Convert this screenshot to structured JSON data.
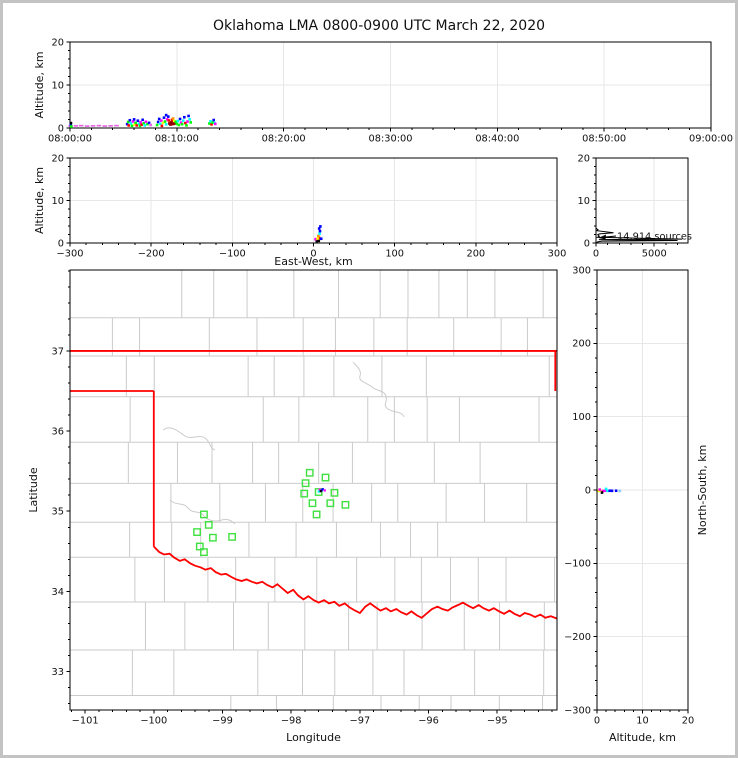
{
  "title": "Oklahoma LMA 0800-0900 UTC March 22, 2020",
  "colors": {
    "state_border": "#ff0000",
    "county_line": "#cbcbcb",
    "station": "#3fe03f",
    "histogram_line": "#000000",
    "grid_line": "#e7e7e7"
  },
  "chart_data": {
    "time_height": {
      "type": "scatter",
      "ylabel": "Altitude, km",
      "xlim_minutes": [
        0,
        60
      ],
      "ylim": [
        0,
        20
      ],
      "x_ticks_minutes": [
        0,
        10,
        20,
        30,
        40,
        50,
        60
      ],
      "x_tick_labels": [
        "08:00:00",
        "08:10:00",
        "08:20:00",
        "08:30:00",
        "08:40:00",
        "08:50:00",
        "09:00:00"
      ],
      "y_ticks": [
        0,
        10,
        20
      ],
      "y_tick_labels": [
        "0",
        "10",
        "20"
      ],
      "trail_color": "#e65fe6",
      "trail": [
        [
          0.05,
          0.45
        ],
        [
          0.55,
          0.5
        ],
        [
          1.05,
          0.55
        ],
        [
          1.6,
          0.45
        ],
        [
          2.15,
          0.5
        ],
        [
          2.7,
          0.55
        ],
        [
          3.25,
          0.45
        ],
        [
          3.8,
          0.5
        ],
        [
          4.35,
          0.55
        ]
      ],
      "points": [
        [
          0.07,
          0.8,
          "#00f"
        ],
        [
          0.12,
          0.35,
          "#0f0"
        ],
        [
          0.09,
          1.15,
          "#000"
        ],
        [
          5.35,
          0.9,
          "#00f"
        ],
        [
          5.45,
          1.4,
          "#0f0"
        ],
        [
          5.5,
          0.6,
          "#f00"
        ],
        [
          5.6,
          1.8,
          "#00f"
        ],
        [
          5.7,
          1.1,
          "#0ff"
        ],
        [
          5.8,
          0.5,
          "#0f0"
        ],
        [
          5.9,
          1.5,
          "#f0f"
        ],
        [
          6.0,
          2.0,
          "#00f"
        ],
        [
          6.05,
          0.8,
          "#ff0"
        ],
        [
          6.15,
          1.2,
          "#0f0"
        ],
        [
          6.25,
          0.6,
          "#f00"
        ],
        [
          6.35,
          1.7,
          "#00f"
        ],
        [
          6.45,
          1.0,
          "#0ff"
        ],
        [
          6.55,
          0.5,
          "#0f0"
        ],
        [
          6.6,
          1.35,
          "#f0f"
        ],
        [
          6.7,
          0.75,
          "#f00"
        ],
        [
          6.8,
          1.9,
          "#00f"
        ],
        [
          6.9,
          1.1,
          "#0f0"
        ],
        [
          7.0,
          0.6,
          "#0ff"
        ],
        [
          7.1,
          1.45,
          "#f0f"
        ],
        [
          7.25,
          0.9,
          "#0f0"
        ],
        [
          7.4,
          1.2,
          "#00f"
        ],
        [
          7.55,
          0.7,
          "#e65fe6"
        ],
        [
          8.15,
          0.7,
          "#0f0"
        ],
        [
          8.25,
          1.4,
          "#00f"
        ],
        [
          8.35,
          2.1,
          "#00f"
        ],
        [
          8.45,
          1.0,
          "#0ff"
        ],
        [
          8.55,
          1.7,
          "#f0f"
        ],
        [
          8.6,
          0.5,
          "#f00"
        ],
        [
          8.7,
          1.2,
          "#ff0"
        ],
        [
          8.8,
          2.4,
          "#00f"
        ],
        [
          8.9,
          1.5,
          "#0f0"
        ],
        [
          9.0,
          3.0,
          "#00f"
        ],
        [
          9.0,
          0.85,
          "#0ff"
        ],
        [
          9.1,
          2.0,
          "#f0f"
        ],
        [
          9.2,
          2.65,
          "#00f"
        ],
        [
          9.25,
          1.75,
          "#f00"
        ],
        [
          9.3,
          1.05,
          "#8b0000"
        ],
        [
          9.4,
          0.8,
          "#8b0000"
        ],
        [
          9.45,
          1.3,
          "#990000"
        ],
        [
          9.5,
          1.1,
          "#8b0000"
        ],
        [
          9.55,
          0.9,
          "#a00000"
        ],
        [
          9.6,
          1.35,
          "#8b0000"
        ],
        [
          9.65,
          1.15,
          "#8b0000"
        ],
        [
          9.7,
          0.95,
          "#990000"
        ],
        [
          9.75,
          1.25,
          "#8b0000"
        ],
        [
          9.8,
          1.05,
          "#a00000"
        ],
        [
          9.55,
          1.9,
          "#f00"
        ],
        [
          9.65,
          2.2,
          "#ff8c00"
        ],
        [
          9.75,
          1.65,
          "#ff0"
        ],
        [
          9.9,
          1.45,
          "#0f0"
        ],
        [
          10.0,
          0.95,
          "#0f0"
        ],
        [
          10.1,
          1.6,
          "#0ff"
        ],
        [
          10.2,
          0.7,
          "#0f0"
        ],
        [
          10.3,
          2.1,
          "#00f"
        ],
        [
          10.4,
          1.25,
          "#f0f"
        ],
        [
          10.5,
          0.9,
          "#0f0"
        ],
        [
          10.6,
          1.7,
          "#0ff"
        ],
        [
          10.7,
          2.5,
          "#00f"
        ],
        [
          10.8,
          1.15,
          "#f00"
        ],
        [
          10.9,
          0.6,
          "#0f0"
        ],
        [
          11.0,
          1.5,
          "#f0f"
        ],
        [
          11.1,
          2.8,
          "#00f"
        ],
        [
          11.2,
          2.0,
          "#0ff"
        ],
        [
          11.3,
          1.3,
          "#0f0"
        ],
        [
          13.05,
          1.05,
          "#0f0"
        ],
        [
          13.15,
          1.55,
          "#0ff"
        ],
        [
          13.25,
          0.85,
          "#f00"
        ],
        [
          13.35,
          1.25,
          "#0f0"
        ],
        [
          13.45,
          1.85,
          "#00f"
        ],
        [
          13.55,
          1.15,
          "#0ff"
        ],
        [
          13.6,
          0.95,
          "#f0f"
        ]
      ]
    },
    "ew_height": {
      "type": "scatter",
      "xlabel": "East-West, km",
      "ylabel": "Altitude, km",
      "xlim": [
        -300,
        300
      ],
      "ylim": [
        0,
        20
      ],
      "x_ticks": [
        -300,
        -200,
        -100,
        0,
        100,
        200,
        300
      ],
      "x_tick_labels": [
        "−300",
        "−200",
        "−100",
        "0",
        "100",
        "200",
        "300"
      ],
      "y_ticks": [
        0,
        10,
        20
      ],
      "y_tick_labels": [
        "0",
        "10",
        "20"
      ],
      "points": [
        [
          4,
          0.45,
          "#000"
        ],
        [
          5.5,
          0.75,
          "#000"
        ],
        [
          6.5,
          0.5,
          "#000"
        ],
        [
          7,
          1.2,
          "#f00"
        ],
        [
          6,
          1.65,
          "#ff8c00"
        ],
        [
          7.5,
          2.2,
          "#0ff"
        ],
        [
          8,
          2.8,
          "#00f"
        ],
        [
          7,
          3.4,
          "#00f"
        ],
        [
          8.5,
          3.9,
          "#00f"
        ],
        [
          2.5,
          0.9,
          "#f0f"
        ],
        [
          9.5,
          1.0,
          "#00f"
        ],
        [
          5,
          1.05,
          "#ff0"
        ]
      ]
    },
    "histogram": {
      "type": "line",
      "annotation": "14,914 sources",
      "xlim": [
        0,
        7900
      ],
      "ylim": [
        0,
        20
      ],
      "x_ticks": [
        0,
        5000
      ],
      "x_tick_labels": [
        "0",
        "5000"
      ],
      "y_ticks": [
        0,
        10,
        20
      ],
      "y_tick_labels": [
        "0",
        "10",
        "20"
      ],
      "profile": [
        [
          0,
          20
        ],
        [
          0,
          3.5
        ],
        [
          180,
          3.1
        ],
        [
          80,
          2.9
        ],
        [
          1500,
          2.4
        ],
        [
          300,
          2.15
        ],
        [
          150,
          1.95
        ],
        [
          280,
          1.6
        ],
        [
          120,
          1.35
        ],
        [
          7400,
          0.92
        ],
        [
          250,
          0.8
        ],
        [
          7000,
          0.6
        ],
        [
          500,
          0.45
        ],
        [
          150,
          0.25
        ],
        [
          40,
          0.05
        ],
        [
          0,
          0
        ]
      ]
    },
    "map": {
      "type": "scatter",
      "xlabel": "Longitude",
      "ylabel": "Latitude",
      "xlim": [
        -101.22,
        -94.13
      ],
      "ylim": [
        32.52,
        38.01
      ],
      "x_ticks": [
        -101,
        -100,
        -99,
        -98,
        -97,
        -96,
        -95
      ],
      "x_tick_labels": [
        "−101",
        "−100",
        "−99",
        "−98",
        "−97",
        "−96",
        "−95"
      ],
      "y_ticks": [
        33,
        34,
        35,
        36,
        37
      ],
      "y_tick_labels": [
        "33",
        "34",
        "35",
        "36",
        "37"
      ],
      "state_border": {
        "north_lat": 37,
        "panhandle_lat": 36.5,
        "west_lon": -100,
        "west_lat_range": [
          34.56,
          36.5
        ],
        "east_lon": -94.155,
        "east_lat_range": [
          36.5,
          37
        ],
        "red_river": [
          [
            -100.0,
            34.56
          ],
          [
            -99.92,
            34.49
          ],
          [
            -99.85,
            34.46
          ],
          [
            -99.77,
            34.47
          ],
          [
            -99.7,
            34.42
          ],
          [
            -99.62,
            34.38
          ],
          [
            -99.55,
            34.4
          ],
          [
            -99.47,
            34.35
          ],
          [
            -99.4,
            34.32
          ],
          [
            -99.32,
            34.3
          ],
          [
            -99.25,
            34.27
          ],
          [
            -99.17,
            34.29
          ],
          [
            -99.1,
            34.24
          ],
          [
            -99.02,
            34.21
          ],
          [
            -98.95,
            34.22
          ],
          [
            -98.87,
            34.18
          ],
          [
            -98.8,
            34.15
          ],
          [
            -98.72,
            34.13
          ],
          [
            -98.65,
            34.15
          ],
          [
            -98.57,
            34.12
          ],
          [
            -98.5,
            34.1
          ],
          [
            -98.42,
            34.12
          ],
          [
            -98.35,
            34.08
          ],
          [
            -98.27,
            34.05
          ],
          [
            -98.2,
            34.09
          ],
          [
            -98.12,
            34.03
          ],
          [
            -98.05,
            33.98
          ],
          [
            -97.97,
            34.02
          ],
          [
            -97.9,
            33.95
          ],
          [
            -97.82,
            33.9
          ],
          [
            -97.75,
            33.94
          ],
          [
            -97.67,
            33.89
          ],
          [
            -97.6,
            33.86
          ],
          [
            -97.52,
            33.89
          ],
          [
            -97.45,
            33.85
          ],
          [
            -97.37,
            33.87
          ],
          [
            -97.3,
            33.82
          ],
          [
            -97.22,
            33.85
          ],
          [
            -97.15,
            33.8
          ],
          [
            -97.07,
            33.76
          ],
          [
            -97.0,
            33.73
          ],
          [
            -96.92,
            33.81
          ],
          [
            -96.85,
            33.85
          ],
          [
            -96.77,
            33.8
          ],
          [
            -96.7,
            33.76
          ],
          [
            -96.62,
            33.79
          ],
          [
            -96.55,
            33.75
          ],
          [
            -96.47,
            33.78
          ],
          [
            -96.4,
            33.74
          ],
          [
            -96.32,
            33.71
          ],
          [
            -96.25,
            33.75
          ],
          [
            -96.17,
            33.7
          ],
          [
            -96.1,
            33.67
          ],
          [
            -96.02,
            33.73
          ],
          [
            -95.95,
            33.78
          ],
          [
            -95.87,
            33.81
          ],
          [
            -95.8,
            33.78
          ],
          [
            -95.72,
            33.76
          ],
          [
            -95.65,
            33.8
          ],
          [
            -95.57,
            33.83
          ],
          [
            -95.5,
            33.86
          ],
          [
            -95.42,
            33.82
          ],
          [
            -95.35,
            33.79
          ],
          [
            -95.27,
            33.83
          ],
          [
            -95.2,
            33.79
          ],
          [
            -95.12,
            33.76
          ],
          [
            -95.05,
            33.79
          ],
          [
            -94.97,
            33.75
          ],
          [
            -94.9,
            33.72
          ],
          [
            -94.82,
            33.76
          ],
          [
            -94.75,
            33.72
          ],
          [
            -94.67,
            33.69
          ],
          [
            -94.6,
            33.73
          ],
          [
            -94.52,
            33.71
          ],
          [
            -94.45,
            33.68
          ],
          [
            -94.37,
            33.71
          ],
          [
            -94.3,
            33.67
          ],
          [
            -94.22,
            33.69
          ],
          [
            -94.13,
            33.66
          ]
        ]
      },
      "stations": [
        [
          -97.73,
          35.48
        ],
        [
          -97.5,
          35.42
        ],
        [
          -97.79,
          35.35
        ],
        [
          -97.81,
          35.22
        ],
        [
          -97.6,
          35.24
        ],
        [
          -97.37,
          35.23
        ],
        [
          -97.69,
          35.1
        ],
        [
          -97.43,
          35.1
        ],
        [
          -97.21,
          35.08
        ],
        [
          -97.63,
          34.96
        ],
        [
          -99.27,
          34.96
        ],
        [
          -99.2,
          34.83
        ],
        [
          -99.37,
          34.74
        ],
        [
          -99.14,
          34.67
        ],
        [
          -98.86,
          34.68
        ],
        [
          -99.33,
          34.56
        ],
        [
          -99.27,
          34.49
        ]
      ],
      "flash_points": [
        [
          -97.585,
          35.27,
          "#f0f"
        ],
        [
          -97.555,
          35.26,
          "#00f"
        ],
        [
          -97.6,
          35.245,
          "#0ff"
        ],
        [
          -97.54,
          35.275,
          "#00f"
        ],
        [
          -97.51,
          35.26,
          "#f0f"
        ],
        [
          -97.57,
          35.25,
          "#000"
        ]
      ]
    },
    "ns_height": {
      "type": "scatter",
      "xlabel": "Altitude, km",
      "ylabel": "North-South, km",
      "xlim": [
        0,
        20
      ],
      "ylim": [
        -300,
        300
      ],
      "x_ticks": [
        0,
        10,
        20
      ],
      "x_tick_labels": [
        "0",
        "10",
        "20"
      ],
      "y_ticks": [
        -300,
        -200,
        -100,
        0,
        100,
        200,
        300
      ],
      "y_tick_labels": [
        "−300",
        "−200",
        "−100",
        "0",
        "100",
        "200",
        "300"
      ],
      "points": [
        [
          0.4,
          -1.2,
          "#ff0"
        ],
        [
          0.9,
          -1.0,
          "#ff0"
        ],
        [
          1.3,
          -1.3,
          "#f0f"
        ],
        [
          1.8,
          -1.0,
          "#f0f"
        ],
        [
          2.3,
          -1.2,
          "#0ff"
        ],
        [
          2.8,
          -1.0,
          "#00f"
        ],
        [
          3.3,
          -1.1,
          "#00f"
        ],
        [
          1.1,
          -3.5,
          "#000"
        ],
        [
          2.0,
          1.5,
          "#0ff"
        ],
        [
          4.2,
          -1.0,
          "#00f"
        ],
        [
          5.0,
          -1.2,
          "#8cf"
        ],
        [
          0.6,
          0.5,
          "#f0f"
        ]
      ]
    }
  }
}
